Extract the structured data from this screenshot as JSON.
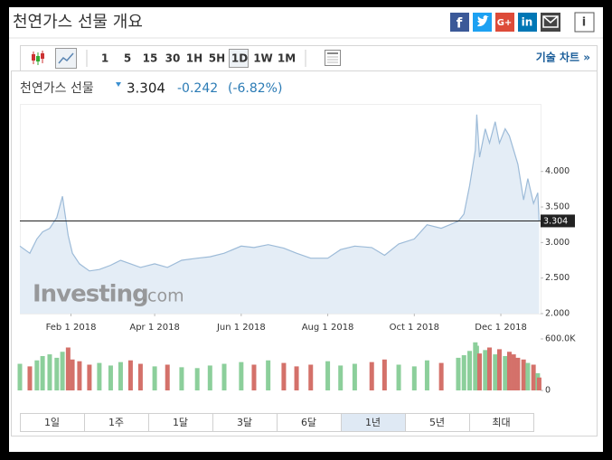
{
  "header": {
    "title": "천연가스 선물 개요",
    "social": [
      "f",
      "G+",
      "in",
      "i"
    ]
  },
  "toolbar": {
    "intervals": [
      "1",
      "5",
      "15",
      "30",
      "1H",
      "5H",
      "1D",
      "1W",
      "1M"
    ],
    "active_interval": 6,
    "advanced_link": "기술 차트 »"
  },
  "quote": {
    "name": "천연가스 선물",
    "price": "3.304",
    "change": "-0.242",
    "change_pct": "(-6.82%)"
  },
  "watermark": {
    "brand": "Investing",
    "suffix": ".com"
  },
  "ranges": {
    "buttons": [
      "1일",
      "1주",
      "1달",
      "3달",
      "6달",
      "1년",
      "5년",
      "최대"
    ],
    "active": 5
  },
  "chart_data": {
    "type": "area",
    "x": [
      "2017-12-27",
      "2018-01-03",
      "2018-01-08",
      "2018-01-12",
      "2018-01-17",
      "2018-01-22",
      "2018-01-26",
      "2018-01-30",
      "2018-02-02",
      "2018-02-07",
      "2018-02-14",
      "2018-02-21",
      "2018-03-01",
      "2018-03-08",
      "2018-03-15",
      "2018-03-22",
      "2018-04-01",
      "2018-04-10",
      "2018-04-20",
      "2018-05-01",
      "2018-05-10",
      "2018-05-20",
      "2018-06-01",
      "2018-06-10",
      "2018-06-20",
      "2018-07-01",
      "2018-07-10",
      "2018-07-20",
      "2018-08-01",
      "2018-08-10",
      "2018-08-20",
      "2018-09-01",
      "2018-09-10",
      "2018-09-20",
      "2018-10-01",
      "2018-10-10",
      "2018-10-20",
      "2018-11-01",
      "2018-11-05",
      "2018-11-09",
      "2018-11-13",
      "2018-11-14",
      "2018-11-16",
      "2018-11-20",
      "2018-11-23",
      "2018-11-27",
      "2018-11-30",
      "2018-12-04",
      "2018-12-07",
      "2018-12-10",
      "2018-12-13",
      "2018-12-17",
      "2018-12-20",
      "2018-12-24",
      "2018-12-27",
      "2018-12-28"
    ],
    "values": [
      2.95,
      2.85,
      3.05,
      3.15,
      3.2,
      3.35,
      3.65,
      3.1,
      2.85,
      2.7,
      2.6,
      2.62,
      2.68,
      2.75,
      2.7,
      2.65,
      2.7,
      2.65,
      2.75,
      2.78,
      2.8,
      2.85,
      2.95,
      2.93,
      2.97,
      2.92,
      2.85,
      2.78,
      2.78,
      2.9,
      2.95,
      2.93,
      2.82,
      2.98,
      3.05,
      3.25,
      3.2,
      3.3,
      3.4,
      3.8,
      4.3,
      4.8,
      4.2,
      4.6,
      4.4,
      4.7,
      4.4,
      4.6,
      4.5,
      4.3,
      4.1,
      3.6,
      3.9,
      3.55,
      3.7,
      3.304
    ],
    "color": "#9dbbd8",
    "fill": "#e4edf6",
    "last_value": 3.304,
    "xlim": [
      "2017-12-27",
      "2018-12-29"
    ],
    "xticks": [
      {
        "value": "2018-02-01",
        "label": "Feb 1 2018"
      },
      {
        "value": "2018-04-01",
        "label": "Apr 1 2018"
      },
      {
        "value": "2018-06-01",
        "label": "Jun 1 2018"
      },
      {
        "value": "2018-08-01",
        "label": "Aug 1 2018"
      },
      {
        "value": "2018-10-01",
        "label": "Oct 1 2018"
      },
      {
        "value": "2018-12-01",
        "label": "Dec 1 2018"
      }
    ],
    "ylim": [
      2,
      4.95
    ],
    "yticks": [
      {
        "value": 2,
        "label": "2.000"
      },
      {
        "value": 2.5,
        "label": "2.500"
      },
      {
        "value": 3,
        "label": "3.000"
      },
      {
        "value": 3.5,
        "label": "3.500"
      },
      {
        "value": 4,
        "label": "4.000"
      }
    ],
    "volume": {
      "values": [
        310000,
        280000,
        350000,
        400000,
        420000,
        380000,
        450000,
        500000,
        360000,
        340000,
        300000,
        320000,
        290000,
        330000,
        350000,
        310000,
        280000,
        300000,
        270000,
        260000,
        290000,
        310000,
        330000,
        300000,
        350000,
        320000,
        280000,
        300000,
        340000,
        290000,
        310000,
        330000,
        360000,
        300000,
        280000,
        350000,
        320000,
        380000,
        410000,
        460000,
        560000,
        520000,
        430000,
        470000,
        500000,
        420000,
        480000,
        400000,
        450000,
        420000,
        380000,
        360000,
        320000,
        300000,
        200000,
        150000
      ],
      "up_color": "#8ccf9b",
      "down_color": "#d4716a",
      "ylim": [
        0,
        600000
      ],
      "yticks": [
        0,
        {
          "value": 600000,
          "label": "600.0K"
        }
      ]
    }
  }
}
